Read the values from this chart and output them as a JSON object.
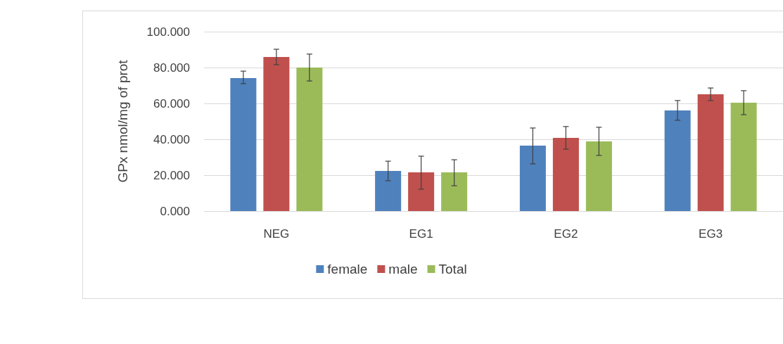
{
  "chart_data": {
    "type": "bar",
    "ylabel": "GPx nmol/mg of prot",
    "categories": [
      "NEG",
      "EG1",
      "EG2",
      "EG3"
    ],
    "series": [
      {
        "name": "female",
        "color": "#4f81bd",
        "values": [
          74.1,
          22.4,
          36.5,
          56.1
        ],
        "errors": [
          [
            71,
            78
          ],
          [
            16.9,
            27.8
          ],
          [
            26.3,
            46.3
          ],
          [
            50.6,
            61.6
          ]
        ]
      },
      {
        "name": "male",
        "color": "#c0504d",
        "values": [
          85.9,
          21.6,
          40.8,
          65.1
        ],
        "errors": [
          [
            81.6,
            90.2
          ],
          [
            12.2,
            30.6
          ],
          [
            34.5,
            47.1
          ],
          [
            61.6,
            68.6
          ]
        ]
      },
      {
        "name": "Total",
        "color": "#9bbb59",
        "values": [
          80,
          21.6,
          38.8,
          60.4
        ],
        "errors": [
          [
            72.5,
            87.5
          ],
          [
            14.1,
            28.6
          ],
          [
            31,
            46.7
          ],
          [
            53.7,
            67.1
          ]
        ]
      }
    ],
    "ylim": [
      0,
      100
    ],
    "yticks": [
      {
        "value": 0,
        "label": "0.000"
      },
      {
        "value": 20,
        "label": "20.000"
      },
      {
        "value": 40,
        "label": "40.000"
      },
      {
        "value": 60,
        "label": "60.000"
      },
      {
        "value": 80,
        "label": "80.000"
      },
      {
        "value": 100,
        "label": "100.000"
      }
    ],
    "grid": "y",
    "legend": "bottom"
  }
}
